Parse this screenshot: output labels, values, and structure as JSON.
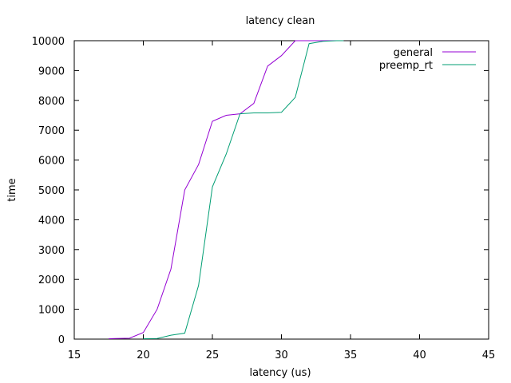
{
  "chart_data": {
    "type": "line",
    "title": "latency clean",
    "xlabel": "latency (us)",
    "ylabel": "time",
    "xlim": [
      15,
      45
    ],
    "ylim": [
      0,
      10000
    ],
    "x_ticks": [
      "15",
      "20",
      "25",
      "30",
      "35",
      "40",
      "45"
    ],
    "y_ticks": [
      "0",
      "1000",
      "2000",
      "3000",
      "4000",
      "5000",
      "6000",
      "7000",
      "8000",
      "9000",
      "10000"
    ],
    "grid": false,
    "legend_position": "top-right",
    "series": [
      {
        "name": "general",
        "color": "#9400d3",
        "points": [
          [
            17.5,
            15
          ],
          [
            18,
            20
          ],
          [
            19,
            30
          ],
          [
            20,
            220
          ],
          [
            21,
            1000
          ],
          [
            22,
            2350
          ],
          [
            23,
            5000
          ],
          [
            24,
            5850
          ],
          [
            25,
            7300
          ],
          [
            26,
            7500
          ],
          [
            27,
            7550
          ],
          [
            28,
            7900
          ],
          [
            29,
            9150
          ],
          [
            30,
            9500
          ],
          [
            31,
            10000
          ],
          [
            32,
            10000
          ],
          [
            33,
            10000
          ],
          [
            34,
            10000
          ],
          [
            34.5,
            10000
          ]
        ]
      },
      {
        "name": "preemp_rt",
        "color": "#009e73",
        "points": [
          [
            20,
            15
          ],
          [
            21,
            20
          ],
          [
            22,
            130
          ],
          [
            23,
            200
          ],
          [
            24,
            1800
          ],
          [
            25,
            5100
          ],
          [
            26,
            6200
          ],
          [
            27,
            7550
          ],
          [
            28,
            7580
          ],
          [
            29,
            7580
          ],
          [
            30,
            7600
          ],
          [
            31,
            8100
          ],
          [
            32,
            9900
          ],
          [
            33,
            9980
          ],
          [
            34,
            10000
          ],
          [
            34.5,
            10000
          ]
        ]
      }
    ]
  }
}
